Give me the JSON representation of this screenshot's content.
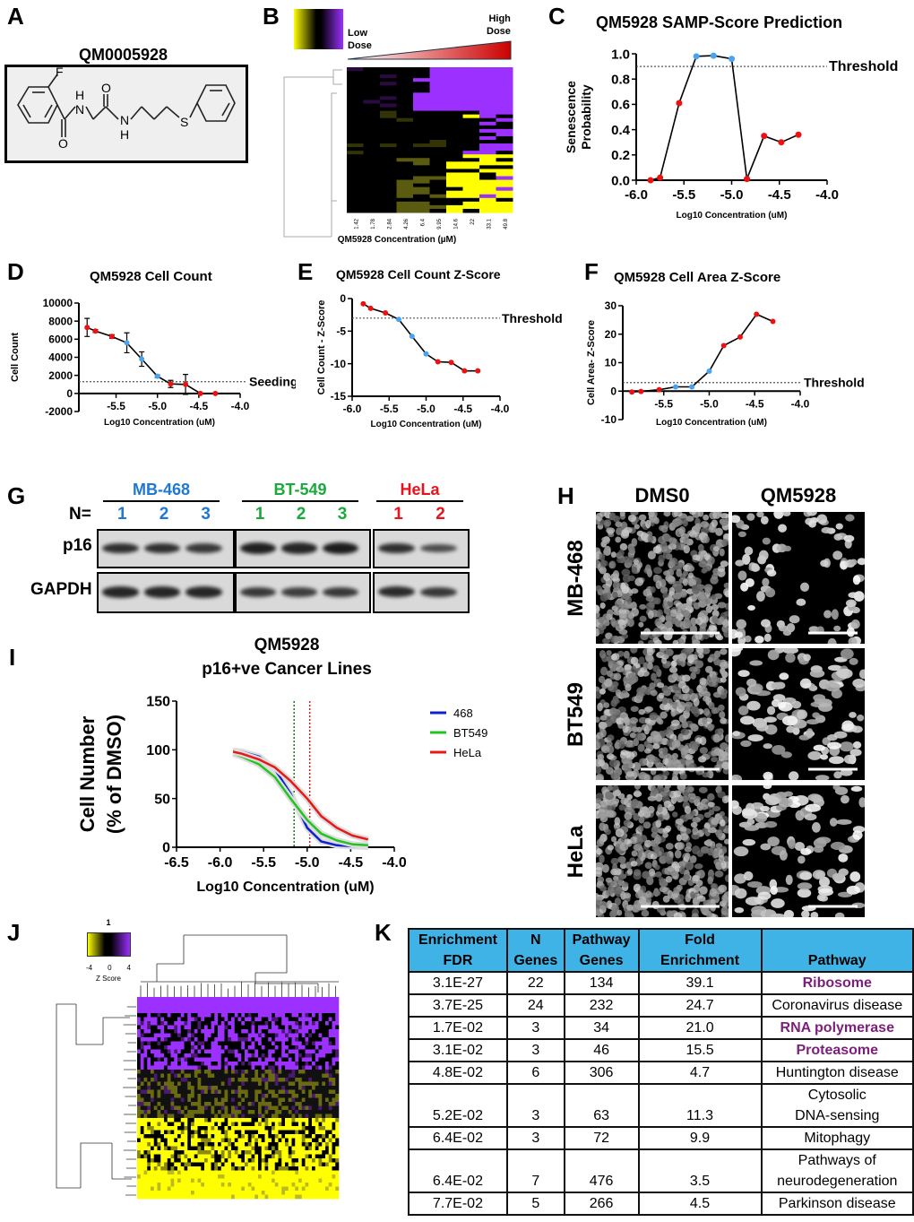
{
  "panels": {
    "A": {
      "label": "A",
      "compound": "QM0005928",
      "atoms": {
        "F": "F",
        "O1": "O",
        "O2": "O",
        "NH1": "H",
        "N1": "N",
        "N2": "N",
        "NH2": "H",
        "S": "S"
      }
    },
    "B": {
      "label": "B",
      "low_dose": "Low\nDose",
      "high_dose": "High\nDose",
      "xlabel": "QM5928 Concentration (µM)",
      "concentrations": [
        "1.42",
        "1.78",
        "2.84",
        "4.26",
        "6.4",
        "9.95",
        "14.6",
        "22",
        "33.1",
        "49.8"
      ],
      "colormap": [
        "#ffff00",
        "#000000",
        "#9b30ff"
      ]
    },
    "C": {
      "label": "C"
    },
    "D": {
      "label": "D"
    },
    "E": {
      "label": "E"
    },
    "F": {
      "label": "F"
    },
    "G": {
      "label": "G",
      "n_label": "N=",
      "groups": [
        {
          "name": "MB-468",
          "color": "#1f78d1",
          "lanes": [
            "1",
            "2",
            "3"
          ],
          "p16": [
            0.8,
            0.8,
            0.7
          ],
          "gapdh": [
            0.9,
            0.9,
            0.9
          ]
        },
        {
          "name": "BT-549",
          "color": "#1aaa3a",
          "lanes": [
            "1",
            "2",
            "3"
          ],
          "p16": [
            0.95,
            0.9,
            1.0
          ],
          "gapdh": [
            0.7,
            0.65,
            0.7
          ]
        },
        {
          "name": "HeLa",
          "color": "#e8141c",
          "lanes": [
            "1",
            "2"
          ],
          "p16": [
            0.8,
            0.5
          ],
          "gapdh": [
            0.85,
            0.7
          ]
        }
      ],
      "rows": [
        "p16",
        "GAPDH"
      ]
    },
    "H": {
      "label": "H",
      "columns": [
        "DMS0",
        "QM5928"
      ],
      "rows": [
        "MB-468",
        "BT549",
        "HeLa"
      ]
    },
    "I": {
      "label": "I"
    },
    "J": {
      "label": "J",
      "colorbar_title": "1",
      "colorbar_ticks": [
        "-4",
        "0",
        "4"
      ],
      "colorbar_label": "Z Score"
    },
    "K": {
      "label": "K",
      "headers": [
        [
          "Enrichment",
          "FDR"
        ],
        [
          "N",
          "Genes"
        ],
        [
          "Pathway",
          "Genes"
        ],
        [
          "Fold",
          "Enrichment"
        ],
        [
          "",
          "Pathway"
        ]
      ],
      "rows": [
        {
          "fdr": "3.1E-27",
          "n": "22",
          "pg": "134",
          "fold": "39.1",
          "pathway": [
            "Ribosome"
          ],
          "highlight": true
        },
        {
          "fdr": "3.7E-25",
          "n": "24",
          "pg": "232",
          "fold": "24.7",
          "pathway": [
            "Coronavirus disease"
          ],
          "highlight": false
        },
        {
          "fdr": "1.7E-02",
          "n": "3",
          "pg": "34",
          "fold": "21.0",
          "pathway": [
            "RNA polymerase"
          ],
          "highlight": true
        },
        {
          "fdr": "3.1E-02",
          "n": "3",
          "pg": "46",
          "fold": "15.5",
          "pathway": [
            "Proteasome"
          ],
          "highlight": true
        },
        {
          "fdr": "4.8E-02",
          "n": "6",
          "pg": "306",
          "fold": "4.7",
          "pathway": [
            "Huntington disease"
          ],
          "highlight": false
        },
        {
          "fdr": "5.2E-02",
          "n": "3",
          "pg": "63",
          "fold": "11.3",
          "pathway": [
            "Cytosolic",
            "DNA-sensing"
          ],
          "highlight": false
        },
        {
          "fdr": "6.4E-02",
          "n": "3",
          "pg": "72",
          "fold": "9.9",
          "pathway": [
            "Mitophagy"
          ],
          "highlight": false
        },
        {
          "fdr": "6.4E-02",
          "n": "7",
          "pg": "476",
          "fold": "3.5",
          "pathway": [
            "Pathways of",
            "neurodegeneration"
          ],
          "highlight": false
        },
        {
          "fdr": "7.7E-02",
          "n": "5",
          "pg": "266",
          "fold": "4.5",
          "pathway": [
            "Parkinson disease"
          ],
          "highlight": false
        }
      ],
      "header_color": "#3fb3e6",
      "highlight_color": "#7b1f7b"
    }
  },
  "chart_data": [
    {
      "id": "C",
      "type": "line",
      "title": "QM5928 SAMP-Score Prediction",
      "xlabel": "Log10 Concentration (uM)",
      "ylabel": "Senescence\nProbability",
      "x": [
        -5.85,
        -5.75,
        -5.55,
        -5.37,
        -5.19,
        -5.0,
        -4.84,
        -4.66,
        -4.48,
        -4.3
      ],
      "y": [
        0.0,
        0.02,
        0.61,
        0.98,
        0.985,
        0.96,
        0.01,
        0.35,
        0.3,
        0.36
      ],
      "point_colors": [
        "red",
        "red",
        "red",
        "blue",
        "blue",
        "blue",
        "red",
        "red",
        "red",
        "red"
      ],
      "xlim": [
        -6.0,
        -4.0
      ],
      "ylim": [
        0,
        1.0
      ],
      "xticks": [
        "-6.0",
        "-5.5",
        "-5.0",
        "-4.5",
        "-4.0"
      ],
      "yticks": [
        "0.0",
        "0.2",
        "0.4",
        "0.6",
        "0.8",
        "1.0"
      ],
      "reference_line": {
        "y": 0.9,
        "label": "Threshold"
      }
    },
    {
      "id": "D",
      "type": "line",
      "title": "QM5928 Cell Count",
      "xlabel": "Log10 Concentration (uM)",
      "ylabel": "Cell Count",
      "x": [
        -5.85,
        -5.75,
        -5.55,
        -5.37,
        -5.19,
        -5.0,
        -4.84,
        -4.66,
        -4.48,
        -4.3
      ],
      "y": [
        7300,
        6900,
        6300,
        5600,
        3800,
        1900,
        1050,
        1000,
        0,
        0
      ],
      "error": [
        1000,
        150,
        200,
        1100,
        800,
        150,
        400,
        1100,
        0,
        0
      ],
      "point_colors": [
        "red",
        "red",
        "red",
        "blue",
        "blue",
        "blue",
        "red",
        "red",
        "red",
        "red"
      ],
      "xlim": [
        -5.95,
        -4.0
      ],
      "ylim": [
        -2000,
        10000
      ],
      "xticks": [
        "-5.5",
        "-5.0",
        "-4.5",
        "-4.0"
      ],
      "yticks": [
        "-2000",
        "0",
        "2000",
        "4000",
        "6000",
        "8000",
        "10000"
      ],
      "reference_line": {
        "y": 1300,
        "label": "Seeding"
      }
    },
    {
      "id": "E",
      "type": "line",
      "title": "QM5928 Cell Count Z-Score",
      "xlabel": "Log10 Concentration (uM)",
      "ylabel": "Cell Count - Z-Score",
      "x": [
        -5.85,
        -5.75,
        -5.55,
        -5.37,
        -5.19,
        -5.0,
        -4.84,
        -4.66,
        -4.48,
        -4.3
      ],
      "y": [
        -0.8,
        -1.5,
        -2.2,
        -3.2,
        -5.8,
        -8.5,
        -9.7,
        -9.8,
        -11.1,
        -11.1
      ],
      "point_colors": [
        "red",
        "red",
        "red",
        "blue",
        "blue",
        "blue",
        "red",
        "red",
        "red",
        "red"
      ],
      "xlim": [
        -6.0,
        -4.0
      ],
      "ylim": [
        -15,
        0
      ],
      "xticks": [
        "-6.0",
        "-5.5",
        "-5.0",
        "-4.5",
        "-4.0"
      ],
      "yticks": [
        "-15",
        "-10",
        "-5",
        "0"
      ],
      "reference_line": {
        "y": -3,
        "label": "Threshold"
      }
    },
    {
      "id": "F",
      "type": "line",
      "title": "QM5928 Cell Area Z-Score",
      "xlabel": "Log10 Concentration (uM)",
      "ylabel": "Cell Area- Z-Score",
      "x": [
        -5.85,
        -5.75,
        -5.55,
        -5.37,
        -5.19,
        -5.0,
        -4.84,
        -4.66,
        -4.48,
        -4.3
      ],
      "y": [
        -0.3,
        -0.1,
        0.5,
        1.5,
        1.5,
        7,
        16,
        19,
        27,
        24.5
      ],
      "point_colors": [
        "red",
        "red",
        "red",
        "blue",
        "blue",
        "blue",
        "red",
        "red",
        "red",
        "red"
      ],
      "xlim": [
        -5.95,
        -4.0
      ],
      "ylim": [
        -10,
        30
      ],
      "xticks": [
        "-5.5",
        "-5.0",
        "-4.5",
        "-4.0"
      ],
      "yticks": [
        "-10",
        "0",
        "10",
        "20",
        "30"
      ],
      "reference_line": {
        "y": 3,
        "label": "Threshold"
      }
    },
    {
      "id": "I",
      "type": "line",
      "title": "QM5928\np16+ve Cancer Lines",
      "xlabel": "Log10 Concentration (uM)",
      "ylabel": "Cell Number\n(% of DMSO)",
      "x": [
        -5.85,
        -5.75,
        -5.55,
        -5.37,
        -5.19,
        -5.0,
        -4.84,
        -4.66,
        -4.48,
        -4.3
      ],
      "series": [
        {
          "name": "468",
          "color": "#1020d0",
          "y": [
            99,
            98,
            93,
            80,
            55,
            20,
            6,
            2,
            1,
            0.5
          ]
        },
        {
          "name": "BT549",
          "color": "#22c422",
          "y": [
            96,
            93,
            85,
            72,
            50,
            28,
            14,
            7,
            3,
            2
          ]
        },
        {
          "name": "HeLa",
          "color": "#e81818",
          "y": [
            98,
            96,
            90,
            82,
            68,
            50,
            32,
            20,
            12,
            8
          ]
        }
      ],
      "vertical_lines": [
        {
          "x": -5.15,
          "color": "#1a7a1a"
        },
        {
          "x": -4.97,
          "color": "#e81818"
        }
      ],
      "xlim": [
        -6.5,
        -4.0
      ],
      "ylim": [
        0,
        150
      ],
      "xticks": [
        "-6.5",
        "-6.0",
        "-5.5",
        "-5.0",
        "-4.5",
        "-4.0"
      ],
      "yticks": [
        "0",
        "50",
        "100",
        "150"
      ],
      "legend": "right"
    }
  ],
  "colors": {
    "red_point": "#ee1111",
    "blue_point": "#4aa3f0"
  }
}
